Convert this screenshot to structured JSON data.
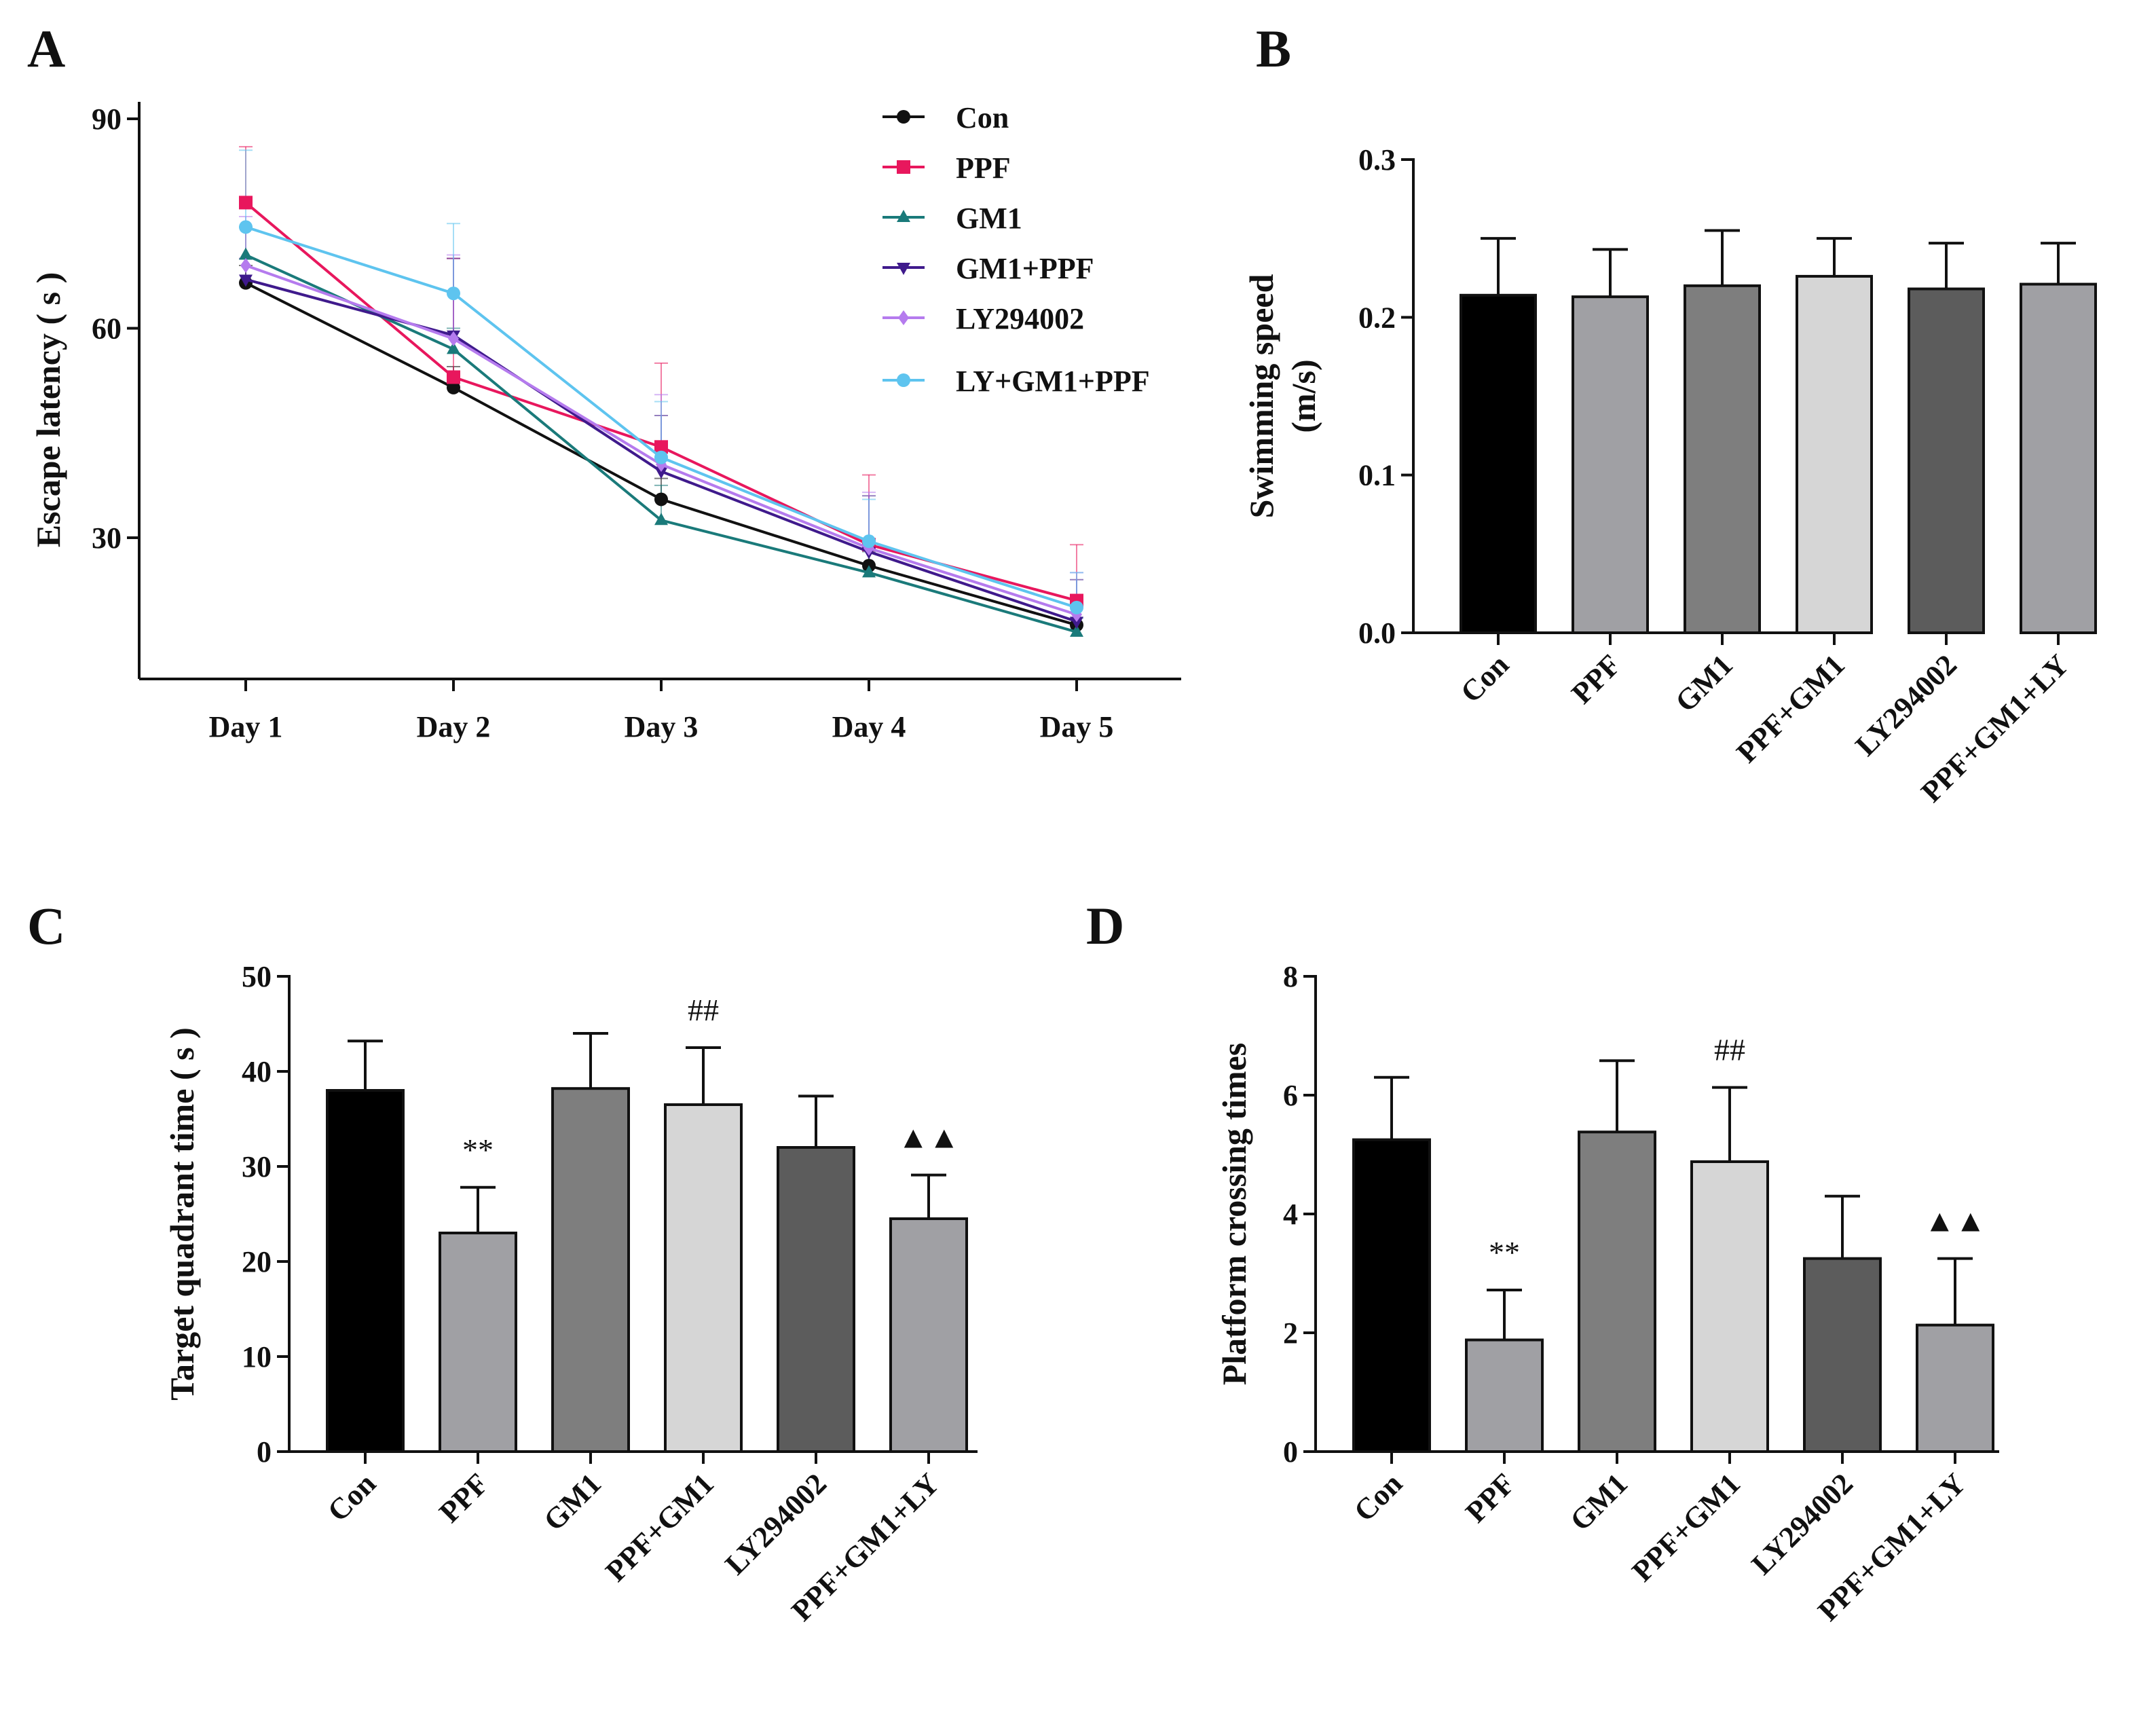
{
  "chart_data": [
    {
      "panel": "A",
      "type": "line",
      "ylabel": "Escape latency ( s )",
      "ylim": [
        10,
        90
      ],
      "yticks": [
        30,
        60,
        90
      ],
      "categories": [
        "Day 1",
        "Day 2",
        "Day 3",
        "Day 4",
        "Day 5"
      ],
      "series": [
        {
          "name": "Con",
          "color": "#111111",
          "marker": "circle",
          "values": [
            66.5,
            51.5,
            35.5,
            26,
            17.5
          ],
          "errors": [
            2.5,
            3,
            3,
            3,
            3
          ]
        },
        {
          "name": "PPF",
          "color": "#e8175d",
          "marker": "square",
          "values": [
            78,
            53,
            43,
            29,
            21
          ],
          "errors": [
            8,
            17,
            12,
            10,
            8
          ]
        },
        {
          "name": "GM1",
          "color": "#1a7a7a",
          "marker": "triangle-up",
          "values": [
            70.5,
            57,
            32.5,
            25,
            16.5
          ],
          "errors": [
            4,
            3,
            5,
            3,
            2
          ]
        },
        {
          "name": "GM1+PPF",
          "color": "#3f1a8c",
          "marker": "triangle-down",
          "values": [
            67,
            59,
            39.5,
            28,
            18
          ],
          "errors": [
            3,
            11,
            8,
            8,
            6
          ]
        },
        {
          "name": "LY294002",
          "color": "#b57bee",
          "marker": "diamond",
          "values": [
            69,
            58.5,
            40.5,
            28.5,
            19
          ],
          "errors": [
            7,
            12,
            10,
            8,
            6
          ]
        },
        {
          "name": "LY+GM1+PPF",
          "color": "#5ec4ef",
          "marker": "circle",
          "values": [
            74.5,
            65,
            41.5,
            29.5,
            20
          ],
          "errors": [
            11,
            10,
            8,
            6,
            5
          ]
        }
      ]
    },
    {
      "panel": "B",
      "type": "bar",
      "ylabel": "Swimming speed (m/s)",
      "ylabel_lines": [
        "Swimming speed",
        "(m/s)"
      ],
      "ylim": [
        0,
        0.3
      ],
      "yticks": [
        "0.0",
        "0.1",
        "0.2",
        "0.3"
      ],
      "categories": [
        "Con",
        "PPF",
        "GM1",
        "PPF+GM1",
        "LY294002",
        "PPF+GM1+LY"
      ],
      "values": [
        0.214,
        0.213,
        0.22,
        0.226,
        0.218,
        0.221
      ],
      "errors": [
        0.036,
        0.03,
        0.035,
        0.024,
        0.029,
        0.026
      ],
      "colors": [
        "#000000",
        "#a0a0a4",
        "#7e7e7e",
        "#d6d6d6",
        "#5c5c5c",
        "#a0a0a4"
      ],
      "annotations": [
        "",
        "",
        "",
        "",
        "",
        ""
      ]
    },
    {
      "panel": "C",
      "type": "bar",
      "ylabel": "Target quadrant time ( s )",
      "ylim": [
        0,
        50
      ],
      "yticks": [
        "0",
        "10",
        "20",
        "30",
        "40",
        "50"
      ],
      "categories": [
        "Con",
        "PPF",
        "GM1",
        "PPF+GM1",
        "LY294002",
        "PPF+GM1+LY"
      ],
      "values": [
        38,
        23,
        38.2,
        36.5,
        32,
        24.5
      ],
      "errors": [
        5.2,
        4.8,
        5.8,
        6,
        5.4,
        4.6
      ],
      "colors": [
        "#000000",
        "#a0a0a4",
        "#7e7e7e",
        "#d6d6d6",
        "#5c5c5c",
        "#a0a0a4"
      ],
      "annotations": [
        "",
        "**",
        "",
        "##",
        "",
        "▲▲"
      ]
    },
    {
      "panel": "D",
      "type": "bar",
      "ylabel": "Platform crossing times",
      "ylim": [
        0,
        8
      ],
      "yticks": [
        "0",
        "2",
        "4",
        "6",
        "8"
      ],
      "categories": [
        "Con",
        "PPF",
        "GM1",
        "PPF+GM1",
        "LY294002",
        "PPF+GM1+LY"
      ],
      "values": [
        5.25,
        1.88,
        5.38,
        4.88,
        3.25,
        2.13
      ],
      "errors": [
        1.05,
        0.84,
        1.2,
        1.25,
        1.05,
        1.12
      ],
      "colors": [
        "#000000",
        "#a0a0a4",
        "#7e7e7e",
        "#d6d6d6",
        "#5c5c5c",
        "#a0a0a4"
      ],
      "annotations": [
        "",
        "**",
        "",
        "##",
        "",
        "▲▲"
      ]
    }
  ]
}
